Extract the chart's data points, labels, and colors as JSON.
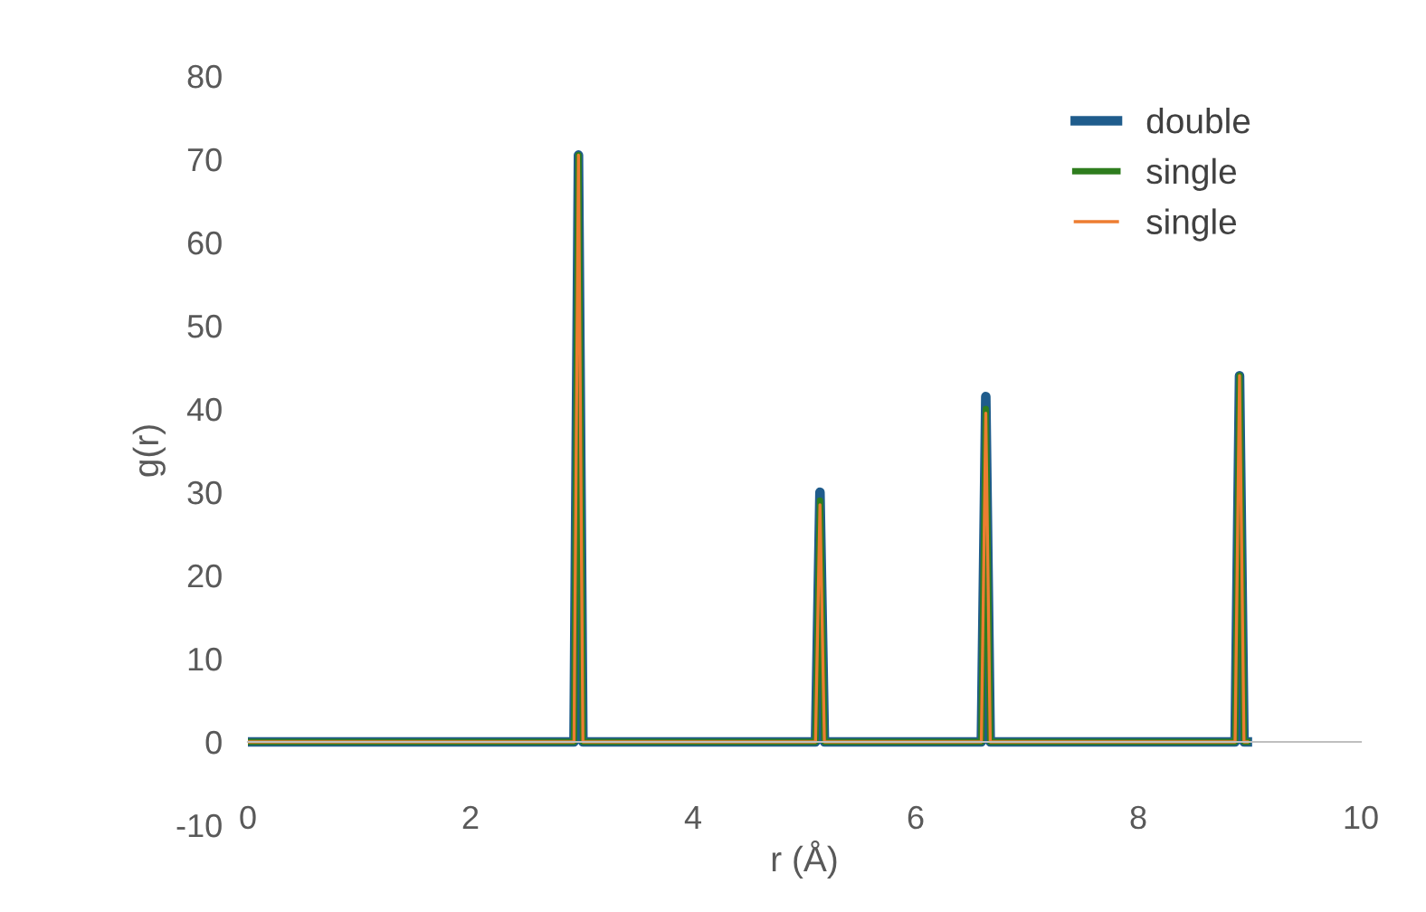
{
  "chart_data": {
    "type": "line",
    "xlabel": "r (Å)",
    "ylabel": "g(r)",
    "xlim": [
      0,
      10
    ],
    "xticks": [
      0,
      2,
      4,
      6,
      8,
      10
    ],
    "ylim": [
      -10,
      80
    ],
    "yticks": [
      -10,
      0,
      10,
      20,
      30,
      40,
      50,
      60,
      70,
      80
    ],
    "grid": false,
    "legend": "top right",
    "series": [
      {
        "name": "double",
        "color": "#1f5c8c",
        "x": [
          0,
          2.93,
          2.97,
          3.01,
          5.1,
          5.14,
          5.18,
          6.59,
          6.63,
          6.67,
          8.87,
          8.91,
          8.95,
          8.98
        ],
        "values": [
          0,
          0,
          70.5,
          0,
          0,
          30,
          0,
          0,
          41.5,
          0,
          0,
          44,
          0,
          0
        ]
      },
      {
        "name": "single",
        "color": "#2e7d1e",
        "x": [
          0,
          2.93,
          2.97,
          3.01,
          5.1,
          5.14,
          5.18,
          6.59,
          6.63,
          6.67,
          8.87,
          8.91,
          8.95,
          8.98
        ],
        "values": [
          0,
          0,
          70.5,
          0,
          0,
          29,
          0,
          0,
          40,
          0,
          0,
          44,
          0,
          0
        ]
      },
      {
        "name": "single",
        "color": "#ed7d31",
        "x": [
          0,
          2.93,
          2.97,
          3.01,
          5.1,
          5.14,
          5.18,
          6.59,
          6.63,
          6.67,
          8.87,
          8.91,
          8.95,
          8.98
        ],
        "values": [
          0,
          0,
          70.5,
          0,
          0,
          28.5,
          0,
          0,
          39.5,
          0,
          0,
          44,
          0,
          0
        ]
      }
    ]
  }
}
